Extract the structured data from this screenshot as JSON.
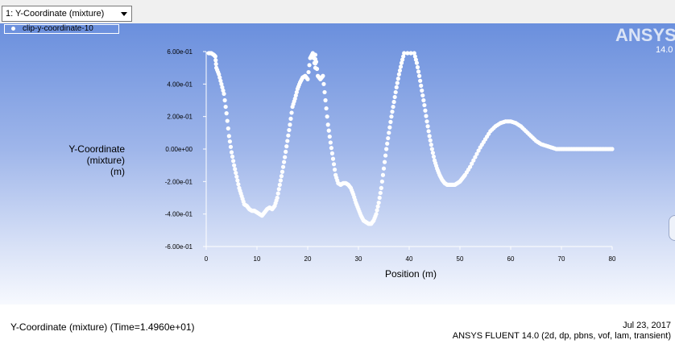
{
  "toolbar": {
    "selector_value": "1: Y-Coordinate (mixture)"
  },
  "legend": {
    "entry": "clip-y-coordinate-10"
  },
  "logo": {
    "brand": "ANSYS",
    "version": "14.0"
  },
  "footer": {
    "caption": "Y-Coordinate (mixture)   (Time=1.4960e+01)",
    "date": "Jul 23, 2017",
    "solver_info": "ANSYS FLUENT 14.0 (2d, dp, pbns, vof, lam, transient)"
  },
  "chart_data": {
    "type": "scatter",
    "ylabel_lines": [
      "Y-Coordinate",
      "(mixture)",
      "(m)"
    ],
    "xlabel": "Position (m)",
    "xlim": [
      0,
      80
    ],
    "ylim": [
      -0.6,
      0.6
    ],
    "x_ticks": [
      0,
      10,
      20,
      30,
      40,
      50,
      60,
      70,
      80
    ],
    "x_tick_labels": [
      "0",
      "10",
      "20",
      "30",
      "40",
      "50",
      "60",
      "70",
      "80"
    ],
    "y_ticks": [
      0.6,
      0.4,
      0.2,
      0.0,
      -0.2,
      -0.4,
      -0.6
    ],
    "y_tick_labels": [
      "6.00e-01",
      "4.00e-01",
      "2.00e-01",
      "0.00e+00",
      "-2.00e-01",
      "-4.00e-01",
      "-6.00e-01"
    ],
    "grid": false,
    "series": [
      {
        "color": "#ffffff",
        "x": [
          0.5,
          1,
          1.5,
          1.8,
          2,
          2.5,
          3,
          3.5,
          4,
          4.5,
          5,
          5.5,
          6,
          6.5,
          7,
          7.5,
          8,
          8.5,
          9,
          9.5,
          10,
          10.5,
          11,
          11.5,
          12,
          12.5,
          13,
          13.5,
          14,
          14.5,
          15,
          15.5,
          16,
          16.5,
          17,
          17.5,
          18,
          18.5,
          19,
          19.5,
          20,
          20.5,
          21,
          21.5,
          21.5,
          22,
          22.5,
          23,
          23.5,
          24,
          24.5,
          25,
          25.5,
          26,
          26.5,
          27,
          27.5,
          28,
          28.5,
          29,
          29.5,
          30,
          30.5,
          31,
          31.5,
          32,
          32.5,
          33,
          33.5,
          34,
          34.5,
          35,
          35.5,
          36,
          36.5,
          37,
          37.5,
          38,
          38.5,
          39,
          41,
          41.5,
          42,
          42.5,
          43,
          43.5,
          44,
          44.5,
          45,
          45.5,
          46,
          46.5,
          47,
          47.5,
          48,
          48.5,
          49,
          49.5,
          50,
          50.5,
          51,
          52,
          53,
          54,
          55,
          56,
          57,
          58,
          59,
          60,
          61,
          62,
          63,
          64,
          65,
          66,
          67,
          68,
          69,
          70,
          71,
          72,
          73,
          74,
          75,
          76,
          77,
          78,
          79,
          80
        ],
        "y": [
          0.59,
          0.59,
          0.58,
          0.57,
          0.5,
          0.46,
          0.4,
          0.34,
          0.22,
          0.08,
          -0.02,
          -0.1,
          -0.17,
          -0.24,
          -0.29,
          -0.34,
          -0.35,
          -0.37,
          -0.38,
          -0.38,
          -0.39,
          -0.4,
          -0.41,
          -0.39,
          -0.37,
          -0.36,
          -0.37,
          -0.35,
          -0.3,
          -0.22,
          -0.14,
          -0.05,
          0.05,
          0.15,
          0.26,
          0.31,
          0.37,
          0.41,
          0.44,
          0.45,
          0.43,
          0.56,
          0.59,
          0.5,
          0.58,
          0.45,
          0.43,
          0.45,
          0.3,
          0.15,
          0.04,
          -0.06,
          -0.16,
          -0.21,
          -0.22,
          -0.21,
          -0.21,
          -0.22,
          -0.24,
          -0.28,
          -0.33,
          -0.37,
          -0.41,
          -0.44,
          -0.45,
          -0.46,
          -0.46,
          -0.44,
          -0.4,
          -0.33,
          -0.24,
          -0.12,
          0.0,
          0.1,
          0.2,
          0.29,
          0.38,
          0.46,
          0.53,
          0.59,
          0.59,
          0.53,
          0.45,
          0.36,
          0.27,
          0.17,
          0.08,
          0.0,
          -0.07,
          -0.12,
          -0.16,
          -0.19,
          -0.21,
          -0.22,
          -0.22,
          -0.22,
          -0.22,
          -0.21,
          -0.2,
          -0.18,
          -0.16,
          -0.11,
          -0.05,
          0.01,
          0.06,
          0.11,
          0.14,
          0.16,
          0.17,
          0.17,
          0.16,
          0.14,
          0.11,
          0.08,
          0.05,
          0.03,
          0.02,
          0.01,
          0.0,
          0.0,
          0.0,
          0.0,
          0.0,
          0.0,
          0.0,
          0.0,
          0.0,
          0.0,
          0.0,
          0.0
        ]
      }
    ]
  }
}
